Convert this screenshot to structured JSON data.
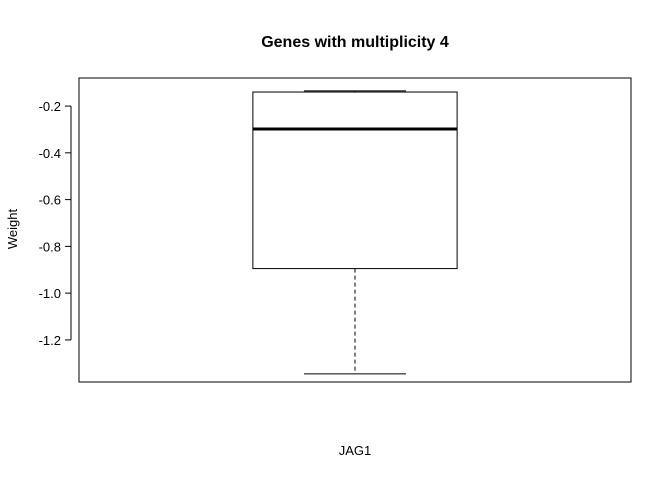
{
  "chart_data": {
    "type": "boxplot",
    "title": "Genes with multiplicity 4",
    "ylabel": "Weight",
    "xlabel": "JAG1",
    "ylim": [
      -1.38,
      -0.08
    ],
    "y_ticks": [
      -0.2,
      -0.4,
      -0.6,
      -0.8,
      -1.0,
      -1.2
    ],
    "y_tick_labels": [
      "-0.2",
      "-0.4",
      "-0.6",
      "-0.8",
      "-1.0",
      "-1.2"
    ],
    "boxes": [
      {
        "whisker_high": -0.135,
        "q3": -0.14,
        "median": -0.298,
        "q1": -0.895,
        "whisker_low": -1.345
      }
    ]
  }
}
